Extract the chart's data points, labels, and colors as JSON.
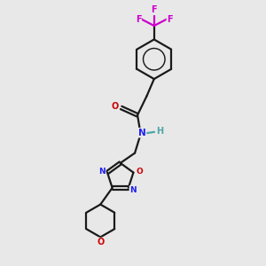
{
  "bg_color": "#e8e8e8",
  "bond_color": "#1a1a1a",
  "N_color": "#2020ee",
  "O_color": "#cc0000",
  "F_color": "#cc00cc",
  "H_color": "#4da6a6",
  "line_width": 1.6,
  "fig_size": [
    3.0,
    3.0
  ],
  "dpi": 100,
  "xlim": [
    0,
    10
  ],
  "ylim": [
    0,
    10
  ]
}
